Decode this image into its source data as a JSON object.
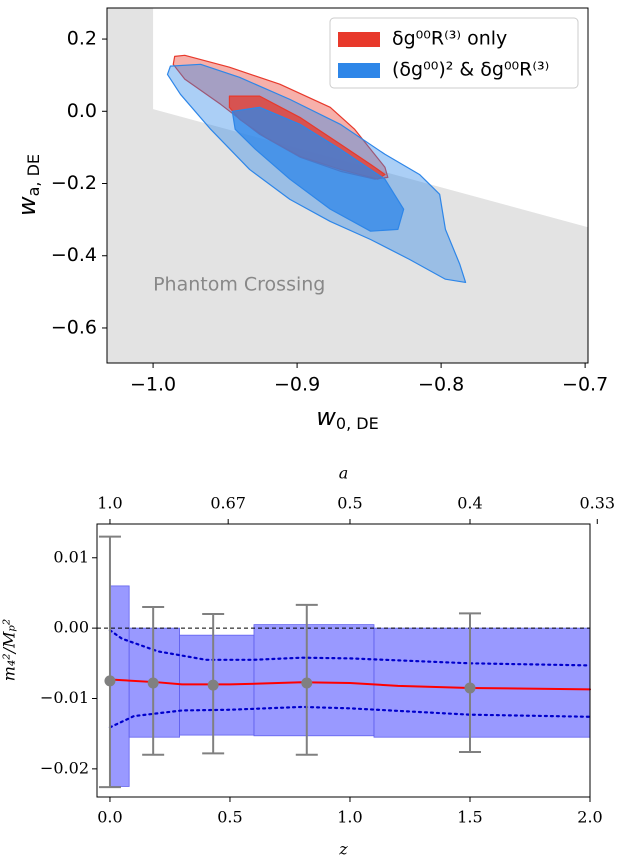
{
  "chart_data": [
    {
      "type": "contour",
      "xlabel": {
        "symbol": "w",
        "subscript": "0, DE"
      },
      "ylabel": {
        "symbol": "w",
        "subscript": "a, DE"
      },
      "xlim": [
        -1.032,
        -0.698
      ],
      "ylim": [
        -0.697,
        0.286
      ],
      "xticks": [
        {
          "value": -1,
          "label": "−1.0"
        },
        {
          "value": -0.9,
          "label": "−0.9"
        },
        {
          "value": -0.8,
          "label": "−0.8"
        },
        {
          "value": -0.7,
          "label": "−0.7"
        }
      ],
      "yticks": [
        {
          "value": -0.6,
          "label": "−0.6"
        },
        {
          "value": -0.4,
          "label": "−0.4"
        },
        {
          "value": -0.2,
          "label": "−0.2"
        },
        {
          "value": 0,
          "label": "0.0"
        },
        0.2
      ],
      "legend": "upper right",
      "region": {
        "label": "Phantom Crossing",
        "color": "#e3e3e3",
        "x": [
          -1.032,
          -1.0,
          -1.0,
          -0.698,
          -0.698,
          -1.032
        ],
        "y": [
          0.286,
          0.286,
          0.006,
          -0.321,
          -0.697,
          -0.697
        ]
      },
      "series": [
        {
          "name": "δg⁰⁰R⁽³⁾ only",
          "color": "#e8392b",
          "contours": [
            {
              "x": [
                -0.985,
                -0.978,
                -0.947,
                -0.912,
                -0.877,
                -0.86,
                -0.849,
                -0.839,
                -0.837,
                -0.846,
                -0.87,
                -0.898,
                -0.926,
                -0.953,
                -0.978,
                -0.986
              ],
              "y": [
                0.152,
                0.155,
                0.122,
                0.075,
                0.011,
                -0.05,
                -0.105,
                -0.155,
                -0.183,
                -0.188,
                -0.166,
                -0.127,
                -0.064,
                0.019,
                0.089,
                0.13
              ]
            },
            {
              "x": [
                -0.947,
                -0.926,
                -0.898,
                -0.87,
                -0.849,
                -0.839,
                -0.844,
                -0.87,
                -0.898,
                -0.922,
                -0.94,
                -0.947
              ],
              "y": [
                0.042,
                0.042,
                -0.017,
                -0.091,
                -0.147,
                -0.175,
                -0.188,
                -0.161,
                -0.125,
                -0.072,
                -0.022,
                0.011
              ]
            }
          ]
        },
        {
          "name": "(δg⁰⁰)² & δg⁰⁰R⁽³⁾",
          "color": "#2e86e8",
          "contours": [
            {
              "x": [
                -0.988,
                -0.967,
                -0.94,
                -0.905,
                -0.87,
                -0.839,
                -0.815,
                -0.801,
                -0.797,
                -0.787,
                -0.783,
                -0.797,
                -0.822,
                -0.849,
                -0.877,
                -0.905,
                -0.933,
                -0.96,
                -0.981,
                -0.99
              ],
              "y": [
                0.125,
                0.13,
                0.094,
                0.033,
                -0.036,
                -0.119,
                -0.175,
                -0.23,
                -0.327,
                -0.424,
                -0.474,
                -0.465,
                -0.41,
                -0.355,
                -0.305,
                -0.244,
                -0.161,
                -0.05,
                0.047,
                0.102
              ]
            },
            {
              "x": [
                -0.945,
                -0.926,
                -0.898,
                -0.87,
                -0.839,
                -0.826,
                -0.83,
                -0.849,
                -0.877,
                -0.905,
                -0.929,
                -0.943
              ],
              "y": [
                0,
                0.011,
                -0.036,
                -0.105,
                -0.188,
                -0.271,
                -0.327,
                -0.332,
                -0.271,
                -0.188,
                -0.105,
                -0.05
              ]
            }
          ]
        }
      ]
    },
    {
      "type": "binned_errorbar",
      "xlabel": "z",
      "ylabel": "m₄²/Mₚ²",
      "xlim": [
        -0.054,
        2.0
      ],
      "ylim": [
        -0.024,
        0.0148
      ],
      "xticks": [
        {
          "value": 0,
          "label": "0.0"
        },
        0.5,
        {
          "value": 1,
          "label": "1.0"
        },
        1.5,
        {
          "value": 2,
          "label": "2.0"
        }
      ],
      "yticks": [
        {
          "value": -0.02,
          "label": "−0.02"
        },
        {
          "value": -0.01,
          "label": "−0.01"
        },
        {
          "value": 0,
          "label": "0.00"
        },
        0.01
      ],
      "top_axis": {
        "label": "a",
        "ticks": [
          {
            "value": 1,
            "label": "1.0"
          },
          0.67,
          0.5,
          0.4,
          0.33
        ]
      },
      "zero_line": 0,
      "bins": {
        "color": "#8080ff",
        "edges": [
          0,
          0.08,
          0.29,
          0.6,
          1.1,
          2.0
        ],
        "lower": [
          -0.0225,
          -0.0155,
          -0.0152,
          -0.0153,
          -0.0155
        ],
        "upper": [
          0.006,
          0,
          -0.001,
          0.0005,
          0
        ]
      },
      "points": {
        "color": "#808080",
        "x": [
          0,
          0.18,
          0.43,
          0.82,
          1.5
        ],
        "y": [
          -0.0075,
          -0.0078,
          -0.0081,
          -0.0078,
          -0.0085
        ],
        "lower": [
          -0.0226,
          -0.018,
          -0.0178,
          -0.018,
          -0.0176
        ],
        "upper": [
          0.013,
          0.003,
          0.002,
          0.0033,
          0.0021
        ]
      },
      "lines": [
        {
          "color": "#ff0000",
          "style": "solid",
          "x": [
            0,
            0.2,
            0.3,
            0.5,
            0.8,
            1.0,
            1.2,
            1.5,
            2.0
          ],
          "y": [
            -0.0073,
            -0.0077,
            -0.008,
            -0.008,
            -0.0077,
            -0.0078,
            -0.0082,
            -0.0085,
            -0.0087
          ]
        },
        {
          "color": "#0000cc",
          "style": "dotted",
          "x": [
            0,
            0.05,
            0.2,
            0.4,
            0.6,
            0.8,
            1.0,
            1.5,
            2.0
          ],
          "y": [
            -0.0003,
            -0.0015,
            -0.0033,
            -0.0045,
            -0.0045,
            -0.0042,
            -0.0043,
            -0.005,
            -0.0053
          ]
        },
        {
          "color": "#0000cc",
          "style": "dotted",
          "x": [
            0,
            0.1,
            0.3,
            0.5,
            0.8,
            1.0,
            1.5,
            2.0
          ],
          "y": [
            -0.0141,
            -0.0125,
            -0.0117,
            -0.0116,
            -0.0112,
            -0.0114,
            -0.0123,
            -0.0126
          ]
        }
      ]
    }
  ]
}
